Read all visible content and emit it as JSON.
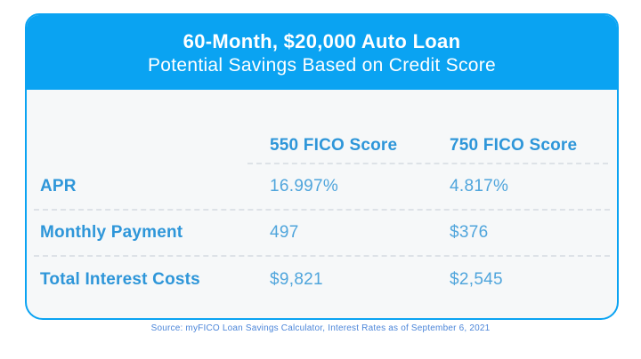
{
  "header": {
    "title_line1": "60-Month, $20,000 Auto Loan",
    "title_line2": "Potential Savings Based on Credit Score"
  },
  "table": {
    "column_headers": [
      "550 FICO Score",
      "750 FICO Score"
    ],
    "rows": [
      {
        "label": "APR",
        "values": [
          "16.997%",
          "4.817%"
        ]
      },
      {
        "label": "Monthly Payment",
        "values": [
          "497",
          "$376"
        ]
      },
      {
        "label": "Total Interest Costs",
        "values": [
          "$9,821",
          "$2,545"
        ]
      }
    ]
  },
  "footer": {
    "source": "Source: myFICO Loan Savings Calculator, Interest Rates as of September 6, 2021"
  },
  "colors": {
    "accent_blue": "#0aa3f2",
    "label_blue": "#2e96d9",
    "value_blue": "#4fa5dc",
    "source_blue": "#4c86d9",
    "card_background": "#f6f8f9",
    "divider_gray": "#dde2e7"
  },
  "chart_data": {
    "type": "table",
    "title": "60-Month, $20,000 Auto Loan",
    "subtitle": "Potential Savings Based on Credit Score",
    "columns": [
      "",
      "550 FICO Score",
      "750 FICO Score"
    ],
    "rows": [
      [
        "APR",
        "16.997%",
        "4.817%"
      ],
      [
        "Monthly Payment",
        "497",
        "$376"
      ],
      [
        "Total Interest Costs",
        "$9,821",
        "$2,545"
      ]
    ],
    "source": "Source: myFICO Loan Savings Calculator, Interest Rates as of September 6, 2021"
  }
}
